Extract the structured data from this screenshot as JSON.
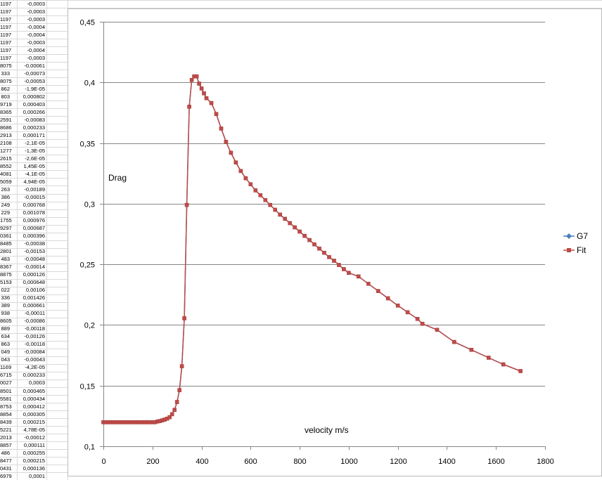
{
  "spreadsheet": {
    "col_a": [
      "1197",
      "1197",
      "1197",
      "1197",
      "1197",
      "1197",
      "1197",
      "1197",
      "8075",
      "333",
      "8075",
      "862",
      "803",
      "9719",
      "8365",
      "2591",
      "8686",
      "2913",
      "2108",
      "1277",
      "2615",
      "8552",
      "4081",
      "5059",
      "263",
      "386",
      "249",
      "229",
      "1755",
      "9297",
      "0361",
      "8485",
      "2801",
      "483",
      "8367",
      "8875",
      "5153",
      "022",
      "336",
      "389",
      "938",
      "8605",
      "889",
      "634",
      "863",
      "049",
      "043",
      "1169",
      "6715",
      "0027",
      "8501",
      "5581",
      "8753",
      "8854",
      "8439",
      "5221",
      "2013",
      "8857",
      "486",
      "8477",
      "0431",
      "6979"
    ],
    "col_b": [
      "-0,0003",
      "-0,0003",
      "-0,0003",
      "-0,0004",
      "-0,0004",
      "-0,0003",
      "-0,0004",
      "-0,0003",
      "-0,00061",
      "-0,00073",
      "-0,00053",
      "-1,9E-05",
      "0,000802",
      "0,000403",
      "0,000266",
      "-0,00083",
      "0,000233",
      "0,000171",
      "-2,1E-05",
      "-1,3E-05",
      "-2,6E-05",
      "1,45E-05",
      "-4,1E-05",
      "4,94E-05",
      "-0,00189",
      "-0,00015",
      "0,000768",
      "0,001078",
      "0,000976",
      "0,000687",
      "0,000396",
      "-0,00038",
      "-0,00153",
      "-0,00048",
      "-0,00014",
      "0,000126",
      "0,000648",
      "0,00106",
      "0,001426",
      "0,000661",
      "-0,00011",
      "-0,00086",
      "-0,00118",
      "-0,00126",
      "-0,00118",
      "-0,00084",
      "-0,00043",
      "-4,2E-05",
      "0,000233",
      "0,0003",
      "0,000465",
      "0,000434",
      "0,000412",
      "0,000305",
      "0,000215",
      "4,78E-05",
      "-0,00012",
      "0,000111",
      "0,000255",
      "0,000215",
      "0,000136",
      "0,0001"
    ]
  },
  "chart_data": {
    "type": "line",
    "ylabel": "Drag",
    "xlabel": "velocity m/s",
    "xlim": [
      0,
      1800
    ],
    "ylim": [
      0.1,
      0.45
    ],
    "x_ticks": [
      "0",
      "200",
      "400",
      "600",
      "800",
      "1000",
      "1200",
      "1400",
      "1600",
      "1800"
    ],
    "y_ticks": [
      "0,1",
      "0,15",
      "0,2",
      "0,25",
      "0,3",
      "0,35",
      "0,4",
      "0,45"
    ],
    "grid": "horizontal",
    "legend_position": "right",
    "series": [
      {
        "name": "G7",
        "color": "#4a7ebb",
        "marker": "diamond"
      },
      {
        "name": "Fit",
        "color": "#be4b48",
        "marker": "square"
      }
    ],
    "x": [
      0,
      10,
      20,
      30,
      40,
      50,
      60,
      70,
      80,
      90,
      100,
      110,
      120,
      130,
      140,
      150,
      160,
      170,
      180,
      190,
      200,
      210,
      220,
      230,
      240,
      250,
      260,
      270,
      280,
      290,
      300,
      310,
      320,
      330,
      340,
      350,
      360,
      370,
      380,
      390,
      400,
      410,
      420,
      440,
      460,
      480,
      500,
      520,
      540,
      560,
      580,
      600,
      620,
      640,
      660,
      680,
      700,
      720,
      740,
      760,
      780,
      800,
      820,
      840,
      860,
      880,
      900,
      920,
      940,
      960,
      980,
      1000,
      1040,
      1080,
      1120,
      1160,
      1200,
      1240,
      1280,
      1300,
      1360,
      1430,
      1500,
      1570,
      1630,
      1700
    ],
    "y": [
      0.1198,
      0.1198,
      0.1198,
      0.1198,
      0.1198,
      0.1198,
      0.1198,
      0.1198,
      0.1198,
      0.1198,
      0.1198,
      0.1198,
      0.1198,
      0.1198,
      0.1198,
      0.1198,
      0.1198,
      0.1198,
      0.1198,
      0.1198,
      0.1198,
      0.1198,
      0.1204,
      0.1208,
      0.1214,
      0.122,
      0.1228,
      0.124,
      0.1264,
      0.13,
      0.1365,
      0.1463,
      0.166,
      0.2055,
      0.299,
      0.38,
      0.402,
      0.405,
      0.405,
      0.399,
      0.395,
      0.391,
      0.387,
      0.383,
      0.374,
      0.362,
      0.351,
      0.342,
      0.334,
      0.327,
      0.321,
      0.316,
      0.311,
      0.307,
      0.303,
      0.299,
      0.295,
      0.291,
      0.2875,
      0.284,
      0.2805,
      0.277,
      0.2735,
      0.27,
      0.2665,
      0.263,
      0.2595,
      0.256,
      0.253,
      0.2495,
      0.246,
      0.243,
      0.24,
      0.234,
      0.228,
      0.222,
      0.216,
      0.2105,
      0.205,
      0.201,
      0.196,
      0.186,
      0.1795,
      0.173,
      0.1675,
      0.162
    ]
  }
}
